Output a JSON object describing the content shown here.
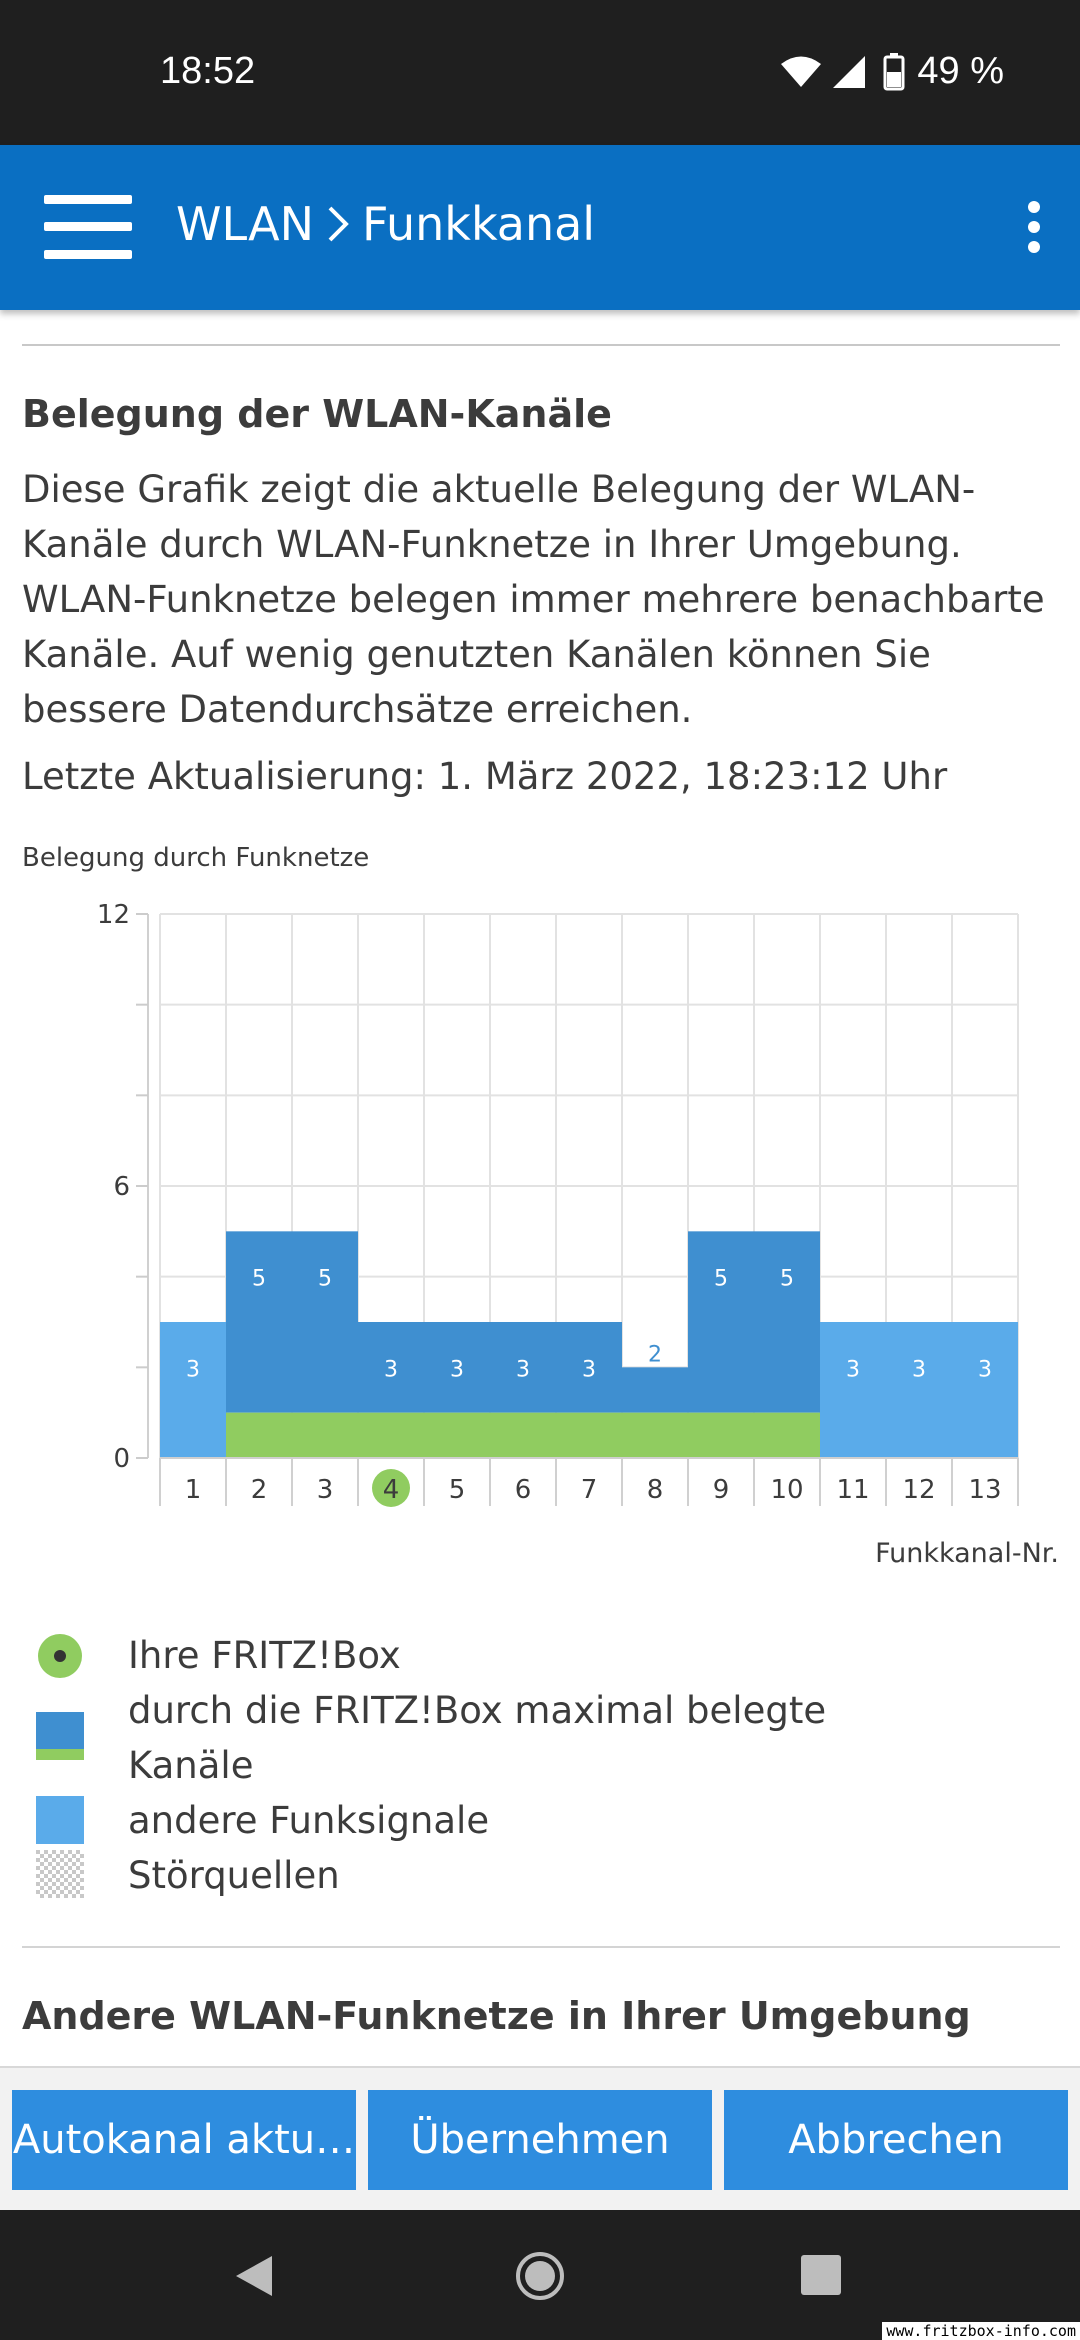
{
  "status_bar": {
    "time": "18:52",
    "battery": "49 %"
  },
  "app_bar": {
    "crumb_parent": "WLAN",
    "crumb_current": "Funkkanal"
  },
  "section": {
    "title": "Belegung der WLAN-Kanäle",
    "description": "Diese Grafik zeigt die aktuelle Belegung der WLAN-Kanäle durch WLAN-Funknetze in Ihrer Umgebung. WLAN-Funknetze belegen immer mehrere benachbarte Kanäle. Auf wenig genutzten Kanälen können Sie bessere Datendurchsätze erreichen.",
    "last_update": "Letzte Aktualisierung: 1. März 2022, 18:23:12 Uhr"
  },
  "chart_caption": "Belegung durch Funknetze",
  "chart_data": {
    "type": "bar",
    "ylabel": "Belegung durch Funknetze",
    "xlabel": "Funkkanal-Nr.",
    "ylim": [
      0,
      12
    ],
    "y_ticks": [
      0,
      6,
      12
    ],
    "grid": true,
    "categories": [
      "1",
      "2",
      "3",
      "4",
      "5",
      "6",
      "7",
      "8",
      "9",
      "10",
      "11",
      "12",
      "13"
    ],
    "values": [
      3,
      5,
      5,
      3,
      3,
      3,
      3,
      2,
      5,
      5,
      3,
      3,
      3
    ],
    "own_channels_range": [
      2,
      10
    ],
    "own_channel": 4,
    "colors": {
      "own": "#3f8fd0",
      "other": "#5aabea",
      "fritzbox": "#90cc60"
    }
  },
  "legend": {
    "items": [
      {
        "label": "Ihre FRITZ!Box",
        "swatch": "own-channel"
      },
      {
        "label": "durch die FRITZ!Box maximal belegte Kanäle",
        "swatch": "own-range"
      },
      {
        "label": "andere Funksignale",
        "swatch": "other"
      },
      {
        "label": "Störquellen",
        "swatch": "interference"
      }
    ]
  },
  "section2": {
    "title": "Andere WLAN-Funknetze in Ihrer Umgebung"
  },
  "buttons": {
    "autochannel": "Autokanal aktu…",
    "apply": "Übernehmen",
    "cancel": "Abbrechen"
  },
  "watermark": "www.fritzbox-info.com",
  "icons": [
    "wifi-icon",
    "signal-icon",
    "battery-icon",
    "menu-icon",
    "chevron-right-icon",
    "more-vert-icon",
    "back-icon",
    "home-icon",
    "recents-icon"
  ]
}
